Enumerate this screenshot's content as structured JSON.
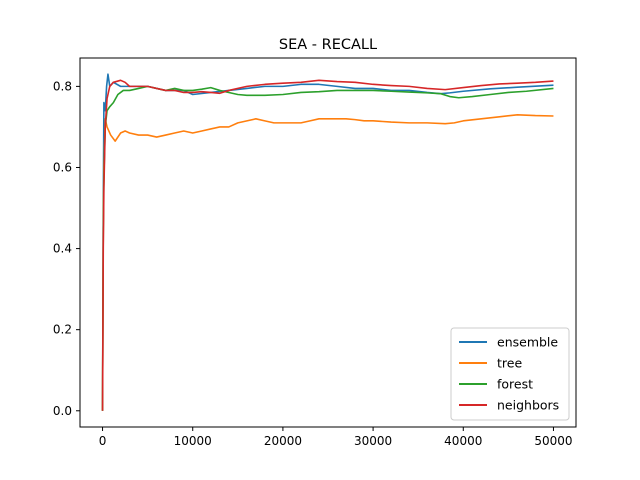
{
  "chart_data": {
    "type": "line",
    "title": "SEA - RECALL",
    "xlabel": "",
    "ylabel": "",
    "xlim": [
      -2500,
      52500
    ],
    "ylim": [
      -0.04,
      0.87
    ],
    "x_ticks": [
      0,
      10000,
      20000,
      30000,
      40000,
      50000
    ],
    "x_tick_labels": [
      "0",
      "10000",
      "20000",
      "30000",
      "40000",
      "50000"
    ],
    "y_ticks": [
      0.0,
      0.2,
      0.4,
      0.6,
      0.8
    ],
    "y_tick_labels": [
      "0.0",
      "0.2",
      "0.4",
      "0.6",
      "0.8"
    ],
    "grid": false,
    "legend_position": "lower-right",
    "series": [
      {
        "name": "ensemble",
        "color": "#1f77b4",
        "points": [
          [
            0,
            0.0
          ],
          [
            80,
            0.5
          ],
          [
            150,
            0.76
          ],
          [
            300,
            0.74
          ],
          [
            450,
            0.8
          ],
          [
            600,
            0.83
          ],
          [
            800,
            0.8
          ],
          [
            1200,
            0.81
          ],
          [
            2000,
            0.8
          ],
          [
            3000,
            0.8
          ],
          [
            5000,
            0.8
          ],
          [
            7000,
            0.79
          ],
          [
            9000,
            0.79
          ],
          [
            10000,
            0.78
          ],
          [
            12000,
            0.785
          ],
          [
            14000,
            0.79
          ],
          [
            16000,
            0.795
          ],
          [
            18000,
            0.8
          ],
          [
            20000,
            0.8
          ],
          [
            22000,
            0.805
          ],
          [
            24000,
            0.805
          ],
          [
            26000,
            0.8
          ],
          [
            28000,
            0.795
          ],
          [
            30000,
            0.795
          ],
          [
            32000,
            0.79
          ],
          [
            34000,
            0.79
          ],
          [
            36000,
            0.785
          ],
          [
            37500,
            0.782
          ],
          [
            38500,
            0.784
          ],
          [
            40000,
            0.788
          ],
          [
            43000,
            0.794
          ],
          [
            46000,
            0.798
          ],
          [
            50000,
            0.803
          ]
        ]
      },
      {
        "name": "tree",
        "color": "#ff7f0e",
        "points": [
          [
            0,
            0.0
          ],
          [
            80,
            0.45
          ],
          [
            150,
            0.6
          ],
          [
            300,
            0.72
          ],
          [
            500,
            0.7
          ],
          [
            900,
            0.68
          ],
          [
            1400,
            0.665
          ],
          [
            2000,
            0.685
          ],
          [
            2500,
            0.69
          ],
          [
            3000,
            0.685
          ],
          [
            4000,
            0.68
          ],
          [
            5000,
            0.68
          ],
          [
            6000,
            0.675
          ],
          [
            7000,
            0.68
          ],
          [
            8000,
            0.685
          ],
          [
            9000,
            0.69
          ],
          [
            10000,
            0.685
          ],
          [
            11000,
            0.69
          ],
          [
            12000,
            0.695
          ],
          [
            13000,
            0.7
          ],
          [
            14000,
            0.7
          ],
          [
            15000,
            0.71
          ],
          [
            16000,
            0.715
          ],
          [
            17000,
            0.72
          ],
          [
            18000,
            0.715
          ],
          [
            19000,
            0.71
          ],
          [
            20000,
            0.71
          ],
          [
            21000,
            0.71
          ],
          [
            22000,
            0.71
          ],
          [
            23000,
            0.715
          ],
          [
            24000,
            0.72
          ],
          [
            25000,
            0.72
          ],
          [
            26000,
            0.72
          ],
          [
            27000,
            0.72
          ],
          [
            28000,
            0.718
          ],
          [
            29000,
            0.715
          ],
          [
            30000,
            0.715
          ],
          [
            32000,
            0.712
          ],
          [
            34000,
            0.71
          ],
          [
            36000,
            0.71
          ],
          [
            38000,
            0.708
          ],
          [
            39000,
            0.71
          ],
          [
            40000,
            0.715
          ],
          [
            42000,
            0.72
          ],
          [
            44000,
            0.725
          ],
          [
            46000,
            0.73
          ],
          [
            48000,
            0.728
          ],
          [
            50000,
            0.727
          ]
        ]
      },
      {
        "name": "forest",
        "color": "#2ca02c",
        "points": [
          [
            0,
            0.0
          ],
          [
            80,
            0.45
          ],
          [
            150,
            0.58
          ],
          [
            300,
            0.7
          ],
          [
            500,
            0.74
          ],
          [
            800,
            0.75
          ],
          [
            1200,
            0.76
          ],
          [
            1700,
            0.78
          ],
          [
            2300,
            0.79
          ],
          [
            3000,
            0.79
          ],
          [
            4000,
            0.795
          ],
          [
            5000,
            0.8
          ],
          [
            6000,
            0.795
          ],
          [
            7000,
            0.79
          ],
          [
            8000,
            0.795
          ],
          [
            9000,
            0.79
          ],
          [
            10000,
            0.79
          ],
          [
            11000,
            0.793
          ],
          [
            12000,
            0.797
          ],
          [
            13000,
            0.79
          ],
          [
            14000,
            0.785
          ],
          [
            15000,
            0.78
          ],
          [
            16000,
            0.778
          ],
          [
            18000,
            0.778
          ],
          [
            20000,
            0.78
          ],
          [
            22000,
            0.785
          ],
          [
            24000,
            0.787
          ],
          [
            26000,
            0.79
          ],
          [
            28000,
            0.79
          ],
          [
            30000,
            0.79
          ],
          [
            32000,
            0.788
          ],
          [
            34000,
            0.786
          ],
          [
            36000,
            0.784
          ],
          [
            37500,
            0.782
          ],
          [
            38500,
            0.775
          ],
          [
            39500,
            0.772
          ],
          [
            41000,
            0.775
          ],
          [
            43000,
            0.78
          ],
          [
            45000,
            0.785
          ],
          [
            47000,
            0.788
          ],
          [
            50000,
            0.795
          ]
        ]
      },
      {
        "name": "neighbors",
        "color": "#d62728",
        "points": [
          [
            0,
            0.0
          ],
          [
            80,
            0.4
          ],
          [
            150,
            0.55
          ],
          [
            300,
            0.7
          ],
          [
            500,
            0.77
          ],
          [
            800,
            0.8
          ],
          [
            1200,
            0.81
          ],
          [
            2000,
            0.815
          ],
          [
            2500,
            0.81
          ],
          [
            3000,
            0.8
          ],
          [
            4000,
            0.8
          ],
          [
            5000,
            0.8
          ],
          [
            6000,
            0.795
          ],
          [
            7000,
            0.79
          ],
          [
            8000,
            0.79
          ],
          [
            9000,
            0.785
          ],
          [
            10000,
            0.785
          ],
          [
            11000,
            0.787
          ],
          [
            12000,
            0.785
          ],
          [
            13000,
            0.783
          ],
          [
            14000,
            0.79
          ],
          [
            16000,
            0.8
          ],
          [
            18000,
            0.805
          ],
          [
            20000,
            0.808
          ],
          [
            22000,
            0.81
          ],
          [
            24000,
            0.815
          ],
          [
            26000,
            0.812
          ],
          [
            28000,
            0.81
          ],
          [
            30000,
            0.805
          ],
          [
            32000,
            0.802
          ],
          [
            34000,
            0.8
          ],
          [
            36000,
            0.795
          ],
          [
            38000,
            0.792
          ],
          [
            40000,
            0.797
          ],
          [
            42000,
            0.802
          ],
          [
            44000,
            0.806
          ],
          [
            46000,
            0.808
          ],
          [
            48000,
            0.81
          ],
          [
            50000,
            0.813
          ]
        ]
      }
    ]
  }
}
